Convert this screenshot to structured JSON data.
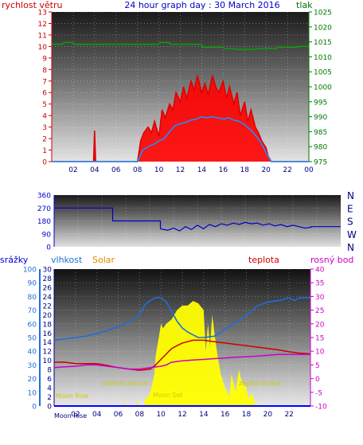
{
  "colors": {
    "wind": "#dd0000",
    "gust_fill": "#ff0000",
    "wind_avg": "#1e90ff",
    "pressure": "#007700",
    "direction": "#0000cc",
    "humidity": "#1e6fd9",
    "solar": "#ffff00",
    "temperature": "#cc0000",
    "dewpoint": "#cc00cc",
    "rain": "#0000ff",
    "sun_label": "#cccc00"
  },
  "chart_data": [
    {
      "type": "line",
      "title": "24 hour graph day : 30 March 2016",
      "ylabel_left": "rychlost větru",
      "ylabel_right": "tlak",
      "x_ticks": [
        "02",
        "04",
        "06",
        "08",
        "10",
        "12",
        "14",
        "16",
        "18",
        "20",
        "22",
        "00"
      ],
      "y_left_ticks": [
        "0",
        "1",
        "2",
        "3",
        "4",
        "5",
        "6",
        "7",
        "8",
        "9",
        "10",
        "11",
        "12",
        "13"
      ],
      "y_right_ticks": [
        "975",
        "980",
        "985",
        "990",
        "995",
        "1000",
        "1005",
        "1010",
        "1015",
        "1020",
        "1025"
      ],
      "ylim_left": [
        0,
        13
      ],
      "ylim_right": [
        975,
        1025
      ],
      "grid": true,
      "series": [
        {
          "name": "wind gust",
          "x": [
            0,
            3.9,
            4,
            4.1,
            8,
            8.3,
            8.6,
            9,
            9.3,
            9.6,
            10,
            10.3,
            10.6,
            11,
            11.3,
            11.6,
            12,
            12.3,
            12.6,
            13,
            13.3,
            13.6,
            14,
            14.3,
            14.6,
            15,
            15.3,
            15.6,
            16,
            16.3,
            16.6,
            17,
            17.3,
            17.6,
            18,
            18.3,
            18.6,
            19,
            19.3,
            19.6,
            20,
            20.2,
            20.5,
            24
          ],
          "y": [
            0,
            0,
            2.7,
            0,
            0,
            1.8,
            2.5,
            3,
            2.5,
            3.5,
            2.2,
            4.5,
            3.8,
            5,
            4.5,
            6,
            5.2,
            6.5,
            5.5,
            7,
            6.2,
            7.5,
            6,
            6.8,
            5.8,
            7.5,
            6.5,
            6,
            7,
            5.5,
            6.5,
            5,
            6,
            4,
            5.2,
            3.5,
            4.5,
            3,
            2.5,
            1.8,
            1.2,
            0.5,
            0,
            0
          ]
        },
        {
          "name": "wind average",
          "x": [
            0,
            8,
            8.5,
            9,
            9.5,
            10,
            10.5,
            11,
            11.5,
            12,
            12.5,
            13,
            13.5,
            14,
            14.5,
            15,
            15.5,
            16,
            16.5,
            17,
            17.5,
            18,
            18.5,
            19,
            19.5,
            20,
            20.5,
            24
          ],
          "y": [
            0,
            0,
            1,
            1.3,
            1.5,
            1.8,
            2,
            2.6,
            3.1,
            3.3,
            3.4,
            3.6,
            3.7,
            3.9,
            3.8,
            3.9,
            3.8,
            3.7,
            3.8,
            3.6,
            3.5,
            3.2,
            2.8,
            2.3,
            1.7,
            0.8,
            0,
            0
          ]
        },
        {
          "name": "pressure",
          "x": [
            0,
            1,
            1.1,
            2,
            2.1,
            3,
            3.1,
            4,
            4.1,
            5,
            5.1,
            6,
            6.1,
            7,
            7.1,
            8,
            8.1,
            9,
            9.1,
            10,
            10.1,
            11,
            11.1,
            12,
            12.1,
            13,
            13.1,
            14,
            14.1,
            15,
            15.1,
            16,
            16.1,
            17,
            17.1,
            18,
            18.1,
            19,
            19.1,
            20,
            20.1,
            21,
            21.1,
            22,
            22.1,
            23,
            23.1,
            24
          ],
          "y": [
            1014.2,
            1014.2,
            1014.8,
            1014.8,
            1014.2,
            1014.2,
            1014.2,
            1014.2,
            1014.2,
            1014.2,
            1014.2,
            1014.2,
            1014.2,
            1014.2,
            1014.2,
            1014.2,
            1014.2,
            1014.2,
            1014.2,
            1014.2,
            1014.8,
            1014.8,
            1014.2,
            1014.2,
            1014.2,
            1014.2,
            1014.2,
            1014.2,
            1013.2,
            1013.2,
            1013.2,
            1013.2,
            1012.8,
            1012.8,
            1012.5,
            1012.5,
            1012.5,
            1012.5,
            1012.8,
            1012.8,
            1012.8,
            1012.8,
            1013.2,
            1013.2,
            1013.2,
            1013.2,
            1013.5,
            1013.5
          ]
        }
      ]
    },
    {
      "type": "line",
      "title": "",
      "y_ticks": [
        "0",
        "90",
        "180",
        "270",
        "360"
      ],
      "ylim": [
        0,
        360
      ],
      "right_labels": [
        "N",
        "W",
        "S",
        "E",
        "N"
      ],
      "grid": true,
      "series": [
        {
          "name": "wind direction",
          "x": [
            0,
            4.9,
            4.9,
            8.9,
            8.9,
            9.5,
            10,
            10.5,
            11,
            11.5,
            12,
            12.5,
            13,
            13.5,
            14,
            14.5,
            15,
            15.5,
            16,
            16.5,
            17,
            17.5,
            18,
            18.5,
            19,
            19.5,
            20,
            20.5,
            21,
            21.5,
            21.5,
            24
          ],
          "y": [
            270,
            270,
            180,
            180,
            125,
            115,
            130,
            110,
            140,
            120,
            150,
            125,
            155,
            140,
            160,
            150,
            165,
            155,
            170,
            160,
            165,
            150,
            160,
            145,
            155,
            140,
            150,
            140,
            130,
            135,
            140,
            140
          ]
        }
      ]
    },
    {
      "type": "line",
      "title": "",
      "labels": {
        "rain": "srážky",
        "humidity": "vlhkost",
        "solar": "Solar",
        "temperature": "teplota",
        "dewpoint": "rosný bod"
      },
      "y_left_ticks": [
        "0",
        "10",
        "20",
        "30",
        "40",
        "50",
        "60",
        "70",
        "80",
        "90",
        "100"
      ],
      "y_mid_ticks": [
        "0",
        "2",
        "4",
        "6",
        "8",
        "10",
        "12",
        "14",
        "16",
        "18",
        "20",
        "22",
        "24",
        "26",
        "28",
        "30"
      ],
      "y_right_ticks": [
        "-10",
        "-5",
        "0",
        "5",
        "10",
        "15",
        "20",
        "25",
        "30",
        "35",
        "40"
      ],
      "ylim_humidity": [
        0,
        100
      ],
      "ylim_temperature": [
        -10,
        40
      ],
      "ylim_rain": [
        0,
        30
      ],
      "grid": true,
      "annotations": [
        "Moon Rise",
        "východ slunce",
        "Moon Set",
        "západ slunce"
      ],
      "bottom_marker": "Moon Rise",
      "series": [
        {
          "name": "humidity",
          "x": [
            0,
            1,
            2,
            3,
            4,
            5,
            6,
            7,
            8,
            8.5,
            9,
            9.5,
            10,
            10.5,
            11,
            11.5,
            12,
            12.5,
            13,
            13.5,
            14,
            15,
            16,
            17,
            18,
            19,
            20,
            21,
            22,
            22.5,
            23,
            24
          ],
          "y": [
            48,
            49,
            50,
            51,
            53,
            55,
            58,
            61,
            67,
            74,
            77,
            79,
            79,
            76,
            69,
            62,
            57,
            54,
            52,
            50,
            50,
            51,
            56,
            61,
            66,
            73,
            76,
            77,
            79,
            77,
            79,
            79
          ]
        },
        {
          "name": "solar",
          "x": [
            0,
            6.5,
            6.6,
            6.8,
            7,
            7.6,
            7.8,
            8,
            8.4,
            8.5,
            8.8,
            9,
            9.4,
            9.5,
            9.8,
            10,
            10.2,
            10.5,
            11,
            11.5,
            12,
            12.5,
            13,
            13.5,
            14,
            14.2,
            14.4,
            14.6,
            14.8,
            15,
            15.3,
            15.6,
            16,
            16.4,
            16.6,
            17,
            17.3,
            17.6,
            18,
            18.2,
            18.5,
            18.8,
            19,
            19.2,
            19.5,
            20,
            24
          ],
          "y": [
            0,
            0,
            1,
            0,
            0,
            0,
            1,
            0,
            0,
            1.5,
            2,
            3,
            7,
            11,
            15,
            18,
            17,
            18,
            19,
            21,
            22,
            22,
            23,
            22.5,
            21,
            12,
            18,
            13,
            20,
            16,
            11,
            7,
            4,
            2,
            7,
            3,
            8,
            5,
            4,
            1.5,
            3,
            0.5,
            0,
            0.5,
            0,
            0,
            0
          ]
        },
        {
          "name": "temperature",
          "x": [
            0,
            1,
            2,
            3,
            4,
            5,
            6,
            7,
            8,
            9,
            9.5,
            10,
            10.5,
            11,
            11.5,
            12,
            12.5,
            13,
            14,
            15,
            16,
            17,
            18,
            19,
            20,
            21,
            22,
            23,
            24
          ],
          "y": [
            6,
            6,
            5.5,
            5.5,
            5.5,
            4.8,
            4,
            3.5,
            3,
            3.5,
            5,
            7,
            9,
            11,
            12,
            13,
            13.5,
            14,
            14,
            13.5,
            13,
            12.5,
            12,
            11.5,
            11,
            10.5,
            9.8,
            9.3,
            9
          ]
        },
        {
          "name": "dew point",
          "x": [
            0,
            1,
            2,
            3,
            4,
            5,
            6,
            7,
            8,
            9,
            10,
            10.5,
            11,
            12,
            13,
            14,
            15,
            16,
            17,
            18,
            19,
            20,
            21,
            22,
            23,
            24
          ],
          "y": [
            4,
            4.3,
            4.5,
            5,
            5,
            4.5,
            4,
            3.5,
            3.5,
            4,
            4.5,
            5,
            6,
            6.5,
            6.8,
            7,
            7.3,
            7.5,
            7.8,
            8,
            8.2,
            8.5,
            8.8,
            8.8,
            8.8,
            8.8
          ]
        },
        {
          "name": "rain",
          "x": [
            0,
            24
          ],
          "y": [
            0,
            0
          ]
        }
      ]
    }
  ]
}
